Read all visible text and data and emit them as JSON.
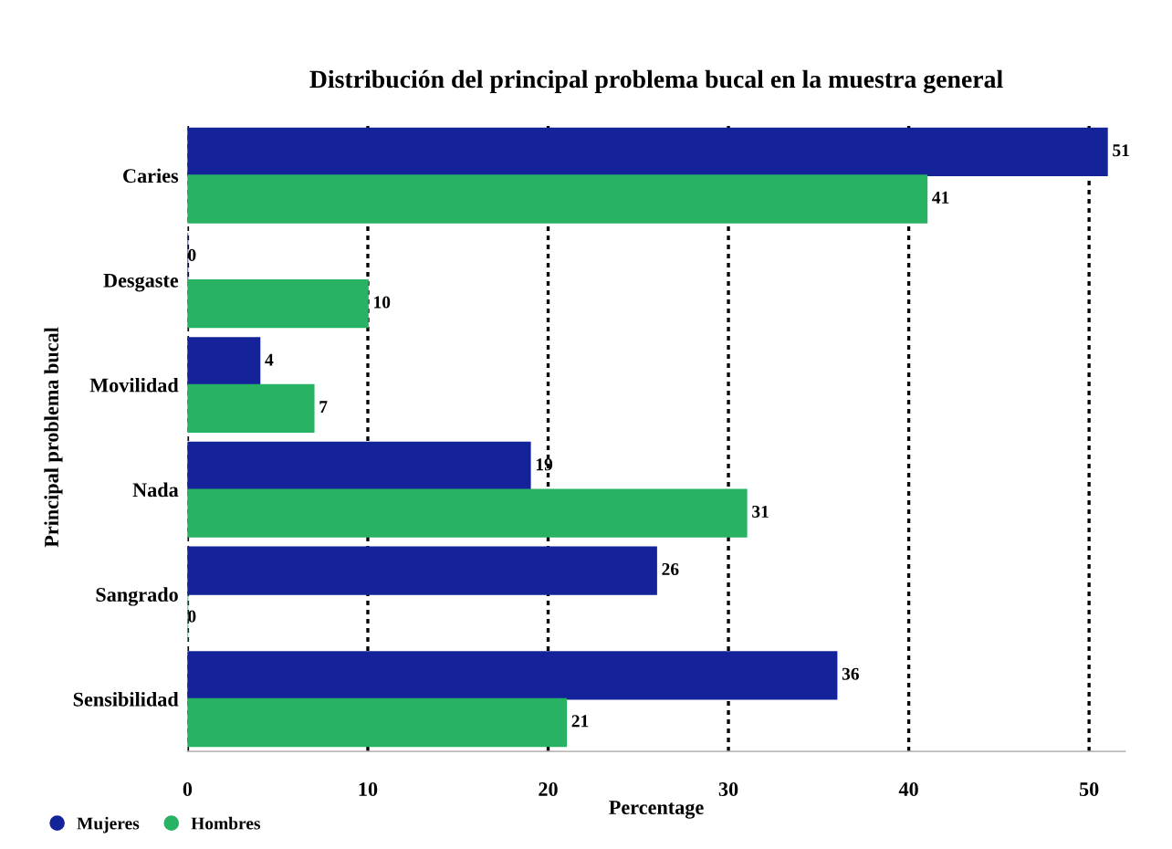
{
  "chart_data": {
    "type": "bar",
    "orientation": "horizontal",
    "title": "Distribución del principal problema bucal en la muestra general",
    "xlabel": "Percentage",
    "ylabel": "Principal problema bucal",
    "categories": [
      "Caries",
      "Desgaste",
      "Movilidad",
      "Nada",
      "Sangrado",
      "Sensibilidad"
    ],
    "series": [
      {
        "name": "Mujeres",
        "color": "#15239a",
        "values": [
          51,
          0,
          4,
          19,
          26,
          36
        ]
      },
      {
        "name": "Hombres",
        "color": "#27b264",
        "values": [
          41,
          10,
          7,
          31,
          0,
          21
        ]
      }
    ],
    "xlim": [
      0,
      52
    ],
    "xticks": [
      0,
      10,
      20,
      30,
      40,
      50
    ],
    "grid": "x",
    "legend": "bottom left",
    "data_labels": true
  }
}
